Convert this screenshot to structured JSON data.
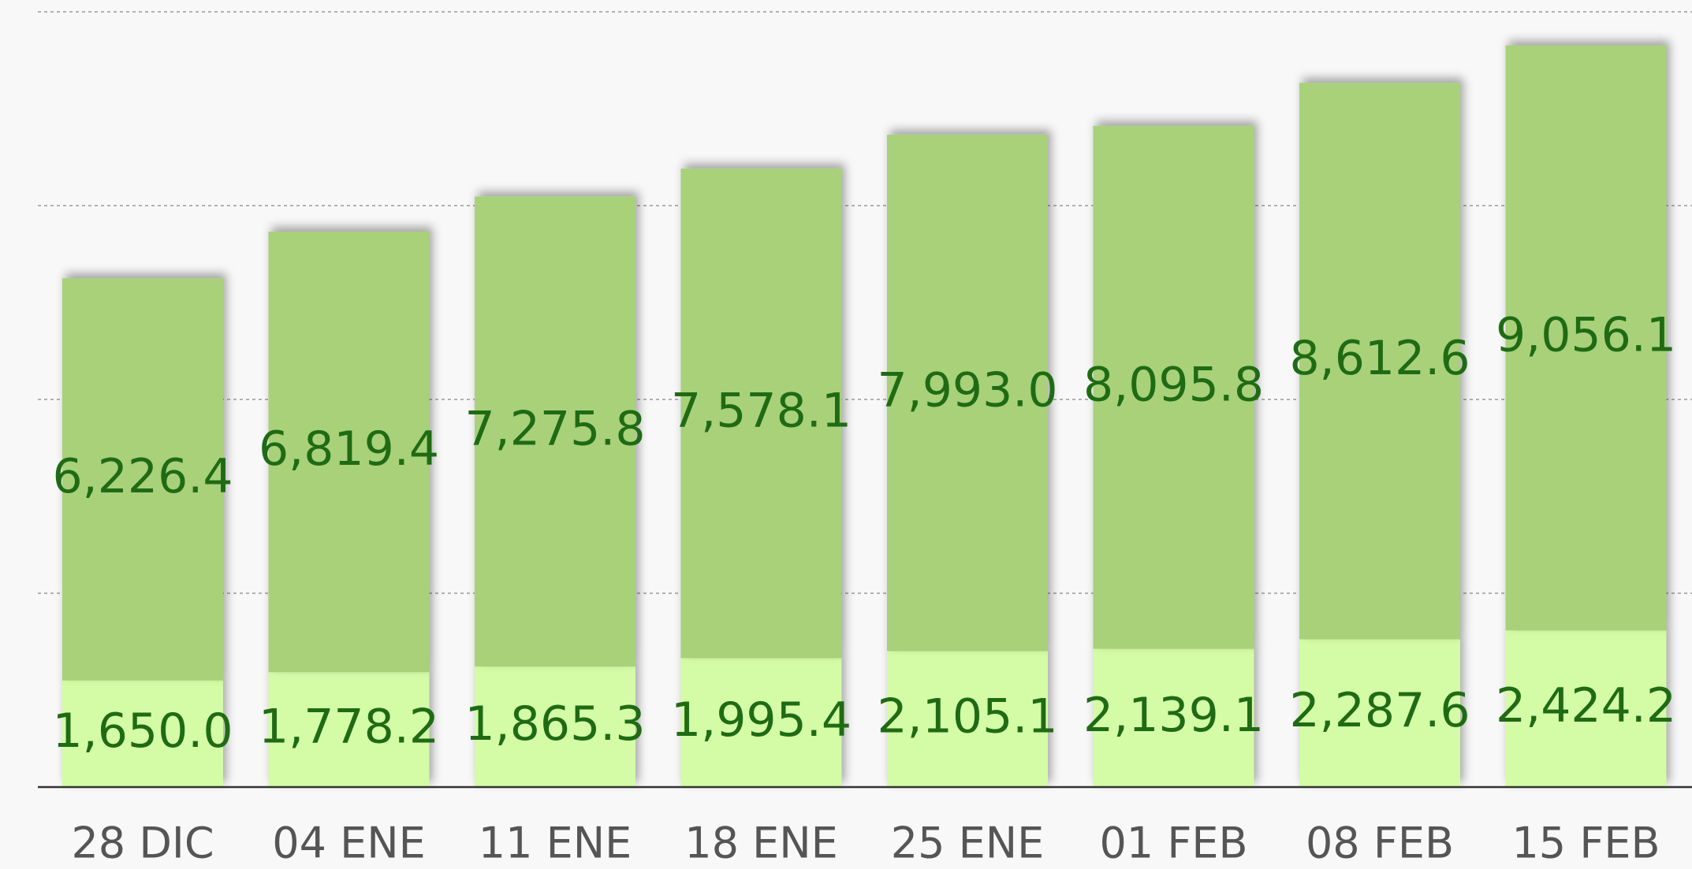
{
  "chart_data": {
    "type": "stacked_bar",
    "categories": [
      "28 DIC",
      "04 ENE",
      "11 ENE",
      "18 ENE",
      "25 ENE",
      "01 FEB",
      "08 FEB",
      "15 FEB"
    ],
    "series": [
      {
        "color": "#d4fca6",
        "values": [
          1650.0,
          1778.2,
          1865.3,
          1995.4,
          2105.1,
          2139.1,
          2287.6,
          2424.2
        ],
        "value_labels": [
          "1,650.0",
          "1,778.2",
          "1,865.3",
          "1,995.4",
          "2,105.1",
          "2,139.1",
          "2,287.6",
          "2,424.2"
        ]
      },
      {
        "color": "#a8d17a",
        "values": [
          6226.4,
          6819.4,
          7275.8,
          7578.1,
          7993.0,
          8095.8,
          8612.6,
          9056.1
        ],
        "value_labels": [
          "6,226.4",
          "6,819.4",
          "7,275.8",
          "7,578.1",
          "7,993.0",
          "8,095.8",
          "8,612.6",
          "9,056.1"
        ]
      }
    ],
    "ylim": [
      0,
      12000
    ],
    "yticks": [
      3000,
      6000,
      9000,
      12000
    ],
    "grid": true
  }
}
